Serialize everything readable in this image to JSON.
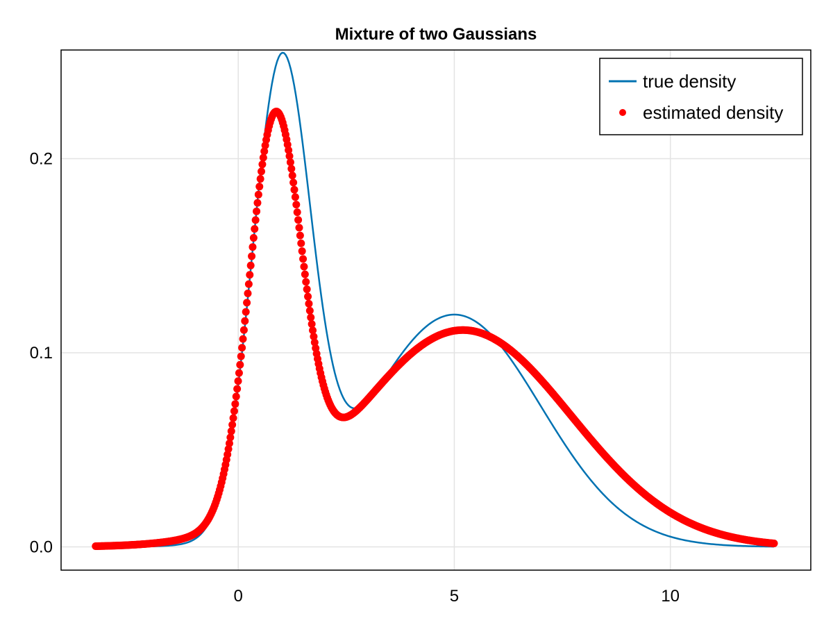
{
  "chart_data": {
    "type": "line",
    "title": "Mixture of two Gaussians",
    "xlabel": "",
    "ylabel": "",
    "xlim": [
      -4.1,
      13.25
    ],
    "ylim": [
      -0.012,
      0.256
    ],
    "xticks": [
      0,
      5,
      10
    ],
    "xtick_labels": [
      "0",
      "5",
      "10"
    ],
    "yticks": [
      0.0,
      0.1,
      0.2
    ],
    "ytick_labels": [
      "0.0",
      "0.1",
      "0.2"
    ],
    "grid": true,
    "legend_position": "top-right",
    "x_range": [
      -3.3,
      12.4
    ],
    "series": [
      {
        "name": "true density",
        "style": "line",
        "color": "#0072b2",
        "model": "mixture of two Gaussians",
        "components": [
          {
            "weight": 0.4,
            "mean": 1.0,
            "sd": 0.67
          },
          {
            "weight": 0.6,
            "mean": 5.0,
            "sd": 2.0
          }
        ]
      },
      {
        "name": "estimated density",
        "style": "markers",
        "color": "#ff0000",
        "model": "mixture of two Gaussians",
        "components": [
          {
            "weight": 0.3,
            "mean": 0.85,
            "sd": 0.6
          },
          {
            "weight": 0.7,
            "mean": 5.2,
            "sd": 2.5
          }
        ]
      }
    ]
  }
}
